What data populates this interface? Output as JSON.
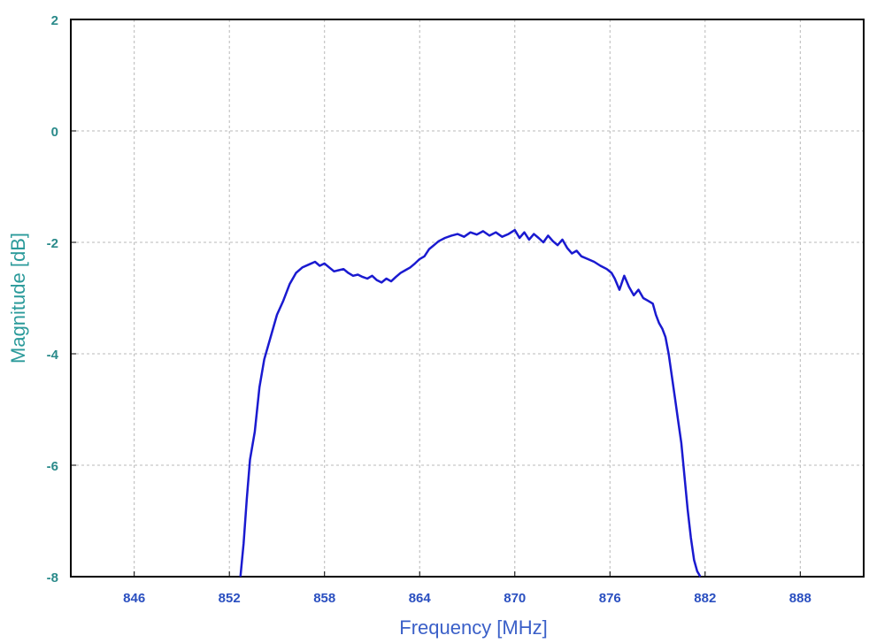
{
  "chart_data": {
    "type": "line",
    "title": "",
    "xlabel": "Frequency [MHz]",
    "ylabel": "Magnitude [dB]",
    "xlim": [
      842,
      892
    ],
    "ylim": [
      -8,
      2
    ],
    "x_ticks": [
      846,
      852,
      858,
      864,
      870,
      876,
      882,
      888
    ],
    "y_ticks": [
      -8,
      -6,
      -4,
      -2,
      0,
      2
    ],
    "x_tick_labels": [
      "846",
      "852",
      "858",
      "864",
      "870",
      "876",
      "882",
      "888"
    ],
    "y_tick_labels": [
      "-8",
      "-6",
      "-4",
      "-2",
      "0",
      "2"
    ],
    "grid": true,
    "legend": "none",
    "colors": {
      "series": "#1a1ad0",
      "tick_text": "#2a4fc0",
      "y_tick_text": "#2a8a8a",
      "axis_title": "#3a5fc8",
      "ylabel_color": "#2a9a9a",
      "grid": "#b8b8b8"
    },
    "series": [
      {
        "x": [
          852.7,
          852.9,
          853.1,
          853.3,
          853.6,
          853.9,
          854.2,
          854.6,
          855.0,
          855.4,
          855.8,
          856.2,
          856.6,
          857.0,
          857.4,
          857.7,
          858.0,
          858.3,
          858.6,
          858.9,
          859.2,
          859.5,
          859.8,
          860.1,
          860.4,
          860.7,
          861.0,
          861.3,
          861.6,
          861.9,
          862.2,
          862.5,
          862.8,
          863.1,
          863.4,
          863.7,
          864.0,
          864.3,
          864.6,
          864.9,
          865.2,
          865.6,
          866.0,
          866.4,
          866.8,
          867.2,
          867.6,
          868.0,
          868.4,
          868.8,
          869.2,
          869.6,
          870.0,
          870.3,
          870.6,
          870.9,
          871.2,
          871.5,
          871.8,
          872.1,
          872.4,
          872.7,
          873.0,
          873.3,
          873.6,
          873.9,
          874.2,
          874.6,
          875.0,
          875.4,
          875.8,
          876.1,
          876.3,
          876.6,
          876.9,
          877.2,
          877.5,
          877.8,
          878.1,
          878.4,
          878.7,
          878.9,
          879.1,
          879.3,
          879.5,
          879.7,
          879.9,
          880.1,
          880.3,
          880.5,
          880.7,
          880.9,
          881.1,
          881.3,
          881.5,
          881.7
        ],
        "y": [
          -8.0,
          -7.4,
          -6.6,
          -5.9,
          -5.4,
          -4.6,
          -4.1,
          -3.7,
          -3.3,
          -3.05,
          -2.75,
          -2.55,
          -2.45,
          -2.4,
          -2.35,
          -2.42,
          -2.38,
          -2.45,
          -2.52,
          -2.5,
          -2.48,
          -2.55,
          -2.6,
          -2.58,
          -2.62,
          -2.65,
          -2.6,
          -2.68,
          -2.72,
          -2.65,
          -2.7,
          -2.62,
          -2.55,
          -2.5,
          -2.45,
          -2.38,
          -2.3,
          -2.25,
          -2.12,
          -2.05,
          -1.98,
          -1.92,
          -1.88,
          -1.85,
          -1.9,
          -1.82,
          -1.86,
          -1.8,
          -1.88,
          -1.82,
          -1.9,
          -1.85,
          -1.78,
          -1.92,
          -1.82,
          -1.95,
          -1.85,
          -1.92,
          -2.0,
          -1.88,
          -1.98,
          -2.05,
          -1.95,
          -2.1,
          -2.2,
          -2.15,
          -2.25,
          -2.3,
          -2.35,
          -2.42,
          -2.48,
          -2.55,
          -2.65,
          -2.85,
          -2.6,
          -2.8,
          -2.95,
          -2.85,
          -3.0,
          -3.05,
          -3.1,
          -3.3,
          -3.45,
          -3.55,
          -3.7,
          -4.0,
          -4.4,
          -4.8,
          -5.2,
          -5.6,
          -6.2,
          -6.8,
          -7.3,
          -7.7,
          -7.9,
          -8.0
        ]
      }
    ]
  }
}
